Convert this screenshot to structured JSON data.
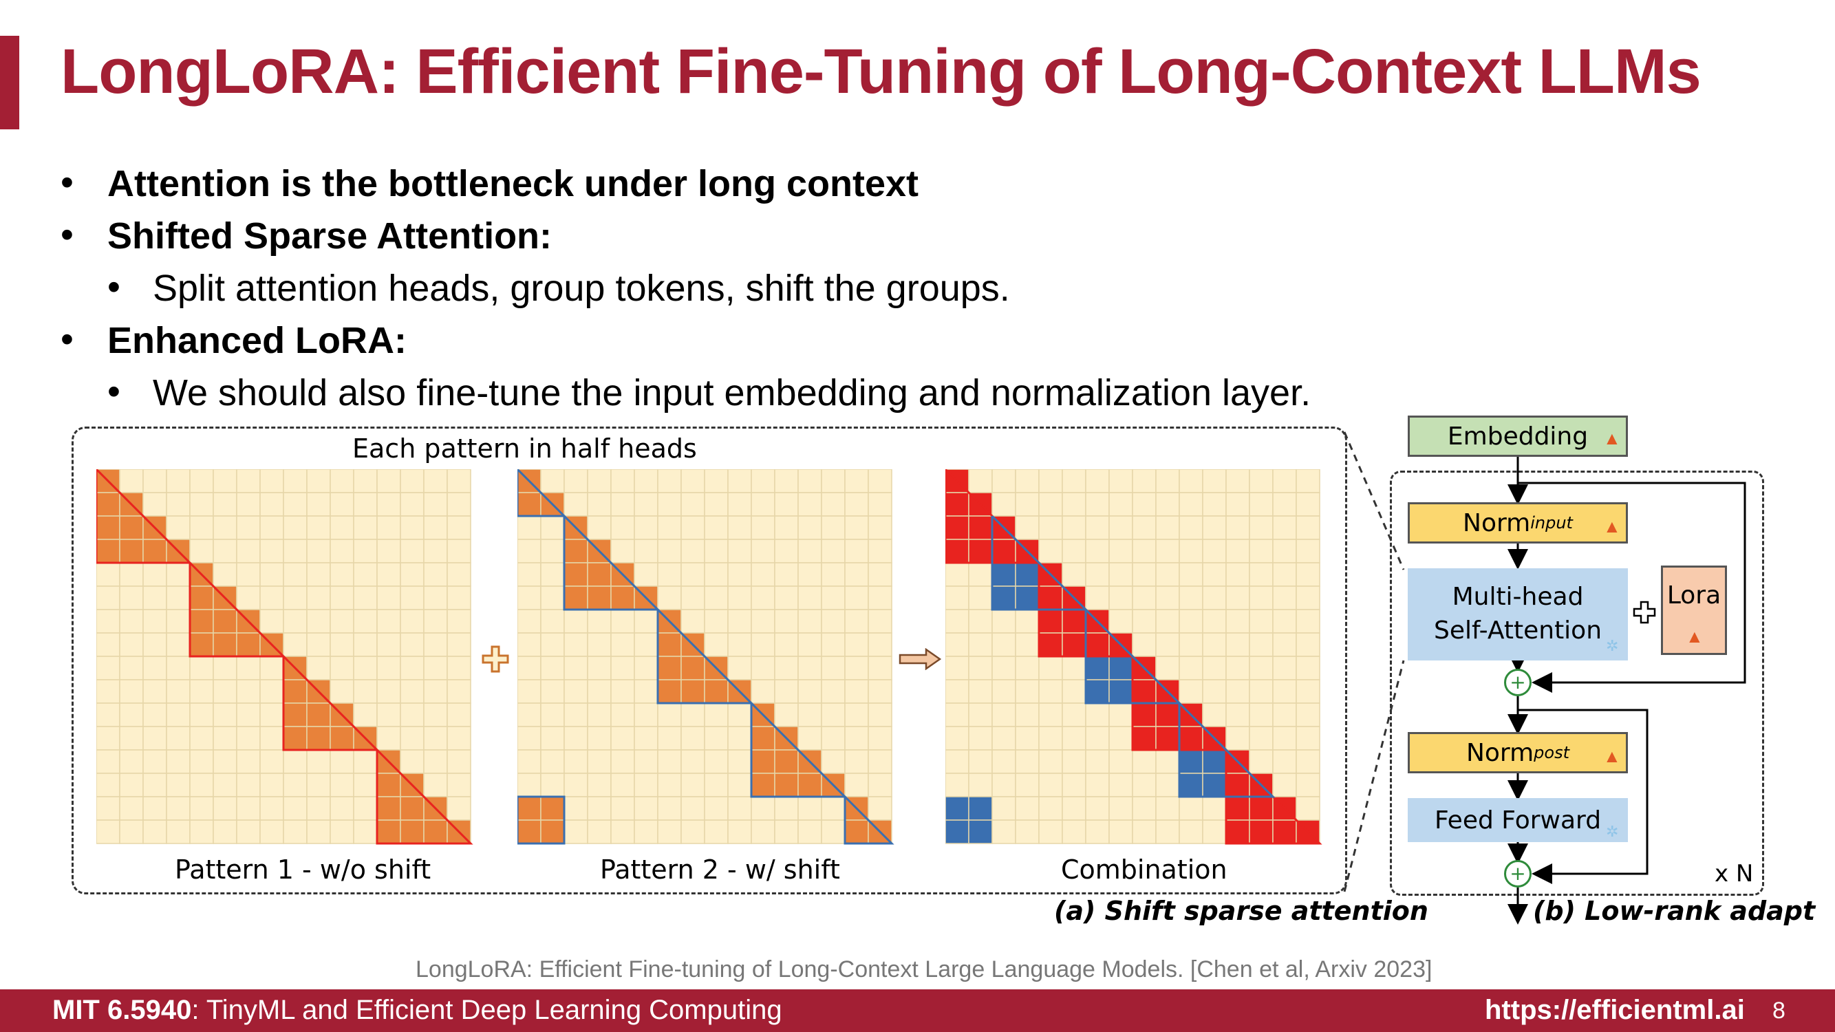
{
  "title": "LongLoRA: Efficient Fine-Tuning of Long-Context LLMs",
  "bullets": [
    {
      "text": "Attention is the bottleneck under long context",
      "level": 1
    },
    {
      "text": "Shifted Sparse Attention:",
      "level": 1
    },
    {
      "text": "Split attention heads, group tokens, shift the groups.",
      "level": 2
    },
    {
      "text": "Enhanced LoRA:",
      "level": 1
    },
    {
      "text": "We should also fine-tune the input embedding and normalization layer.",
      "level": 2
    }
  ],
  "diagram_a": {
    "header": "Each pattern in half heads",
    "pattern1_label": "Pattern 1 - w/o shift",
    "pattern2_label": "Pattern 2 - w/ shift",
    "combination_label": "Combination",
    "caption": "(a) Shift sparse attention",
    "colors": {
      "cell": "#fdf0cc",
      "grid": "#e6d6a8",
      "orange": "#e8823a",
      "red": "#e8231f",
      "blue": "#3a6fb0"
    }
  },
  "diagram_b": {
    "embedding": "Embedding",
    "norm_input": "Norm",
    "norm_input_sub": "input",
    "mhsa_line1": "Multi-head",
    "mhsa_line2": "Self-Attention",
    "lora": "Lora",
    "norm_post": "Norm",
    "norm_post_sub": "post",
    "feed_forward": "Feed Forward",
    "repeat": "x N",
    "caption": "(b) Low-rank adapt",
    "plus": "+"
  },
  "citation": "LongLoRA: Efficient Fine-tuning of Long-Context Large Language Models. [Chen et al, Arxiv 2023]",
  "footer": {
    "course_code": "MIT 6.5940",
    "course_name": ": TinyML and Efficient Deep Learning Computing",
    "url": "https://efficientml.ai",
    "page": "8"
  }
}
